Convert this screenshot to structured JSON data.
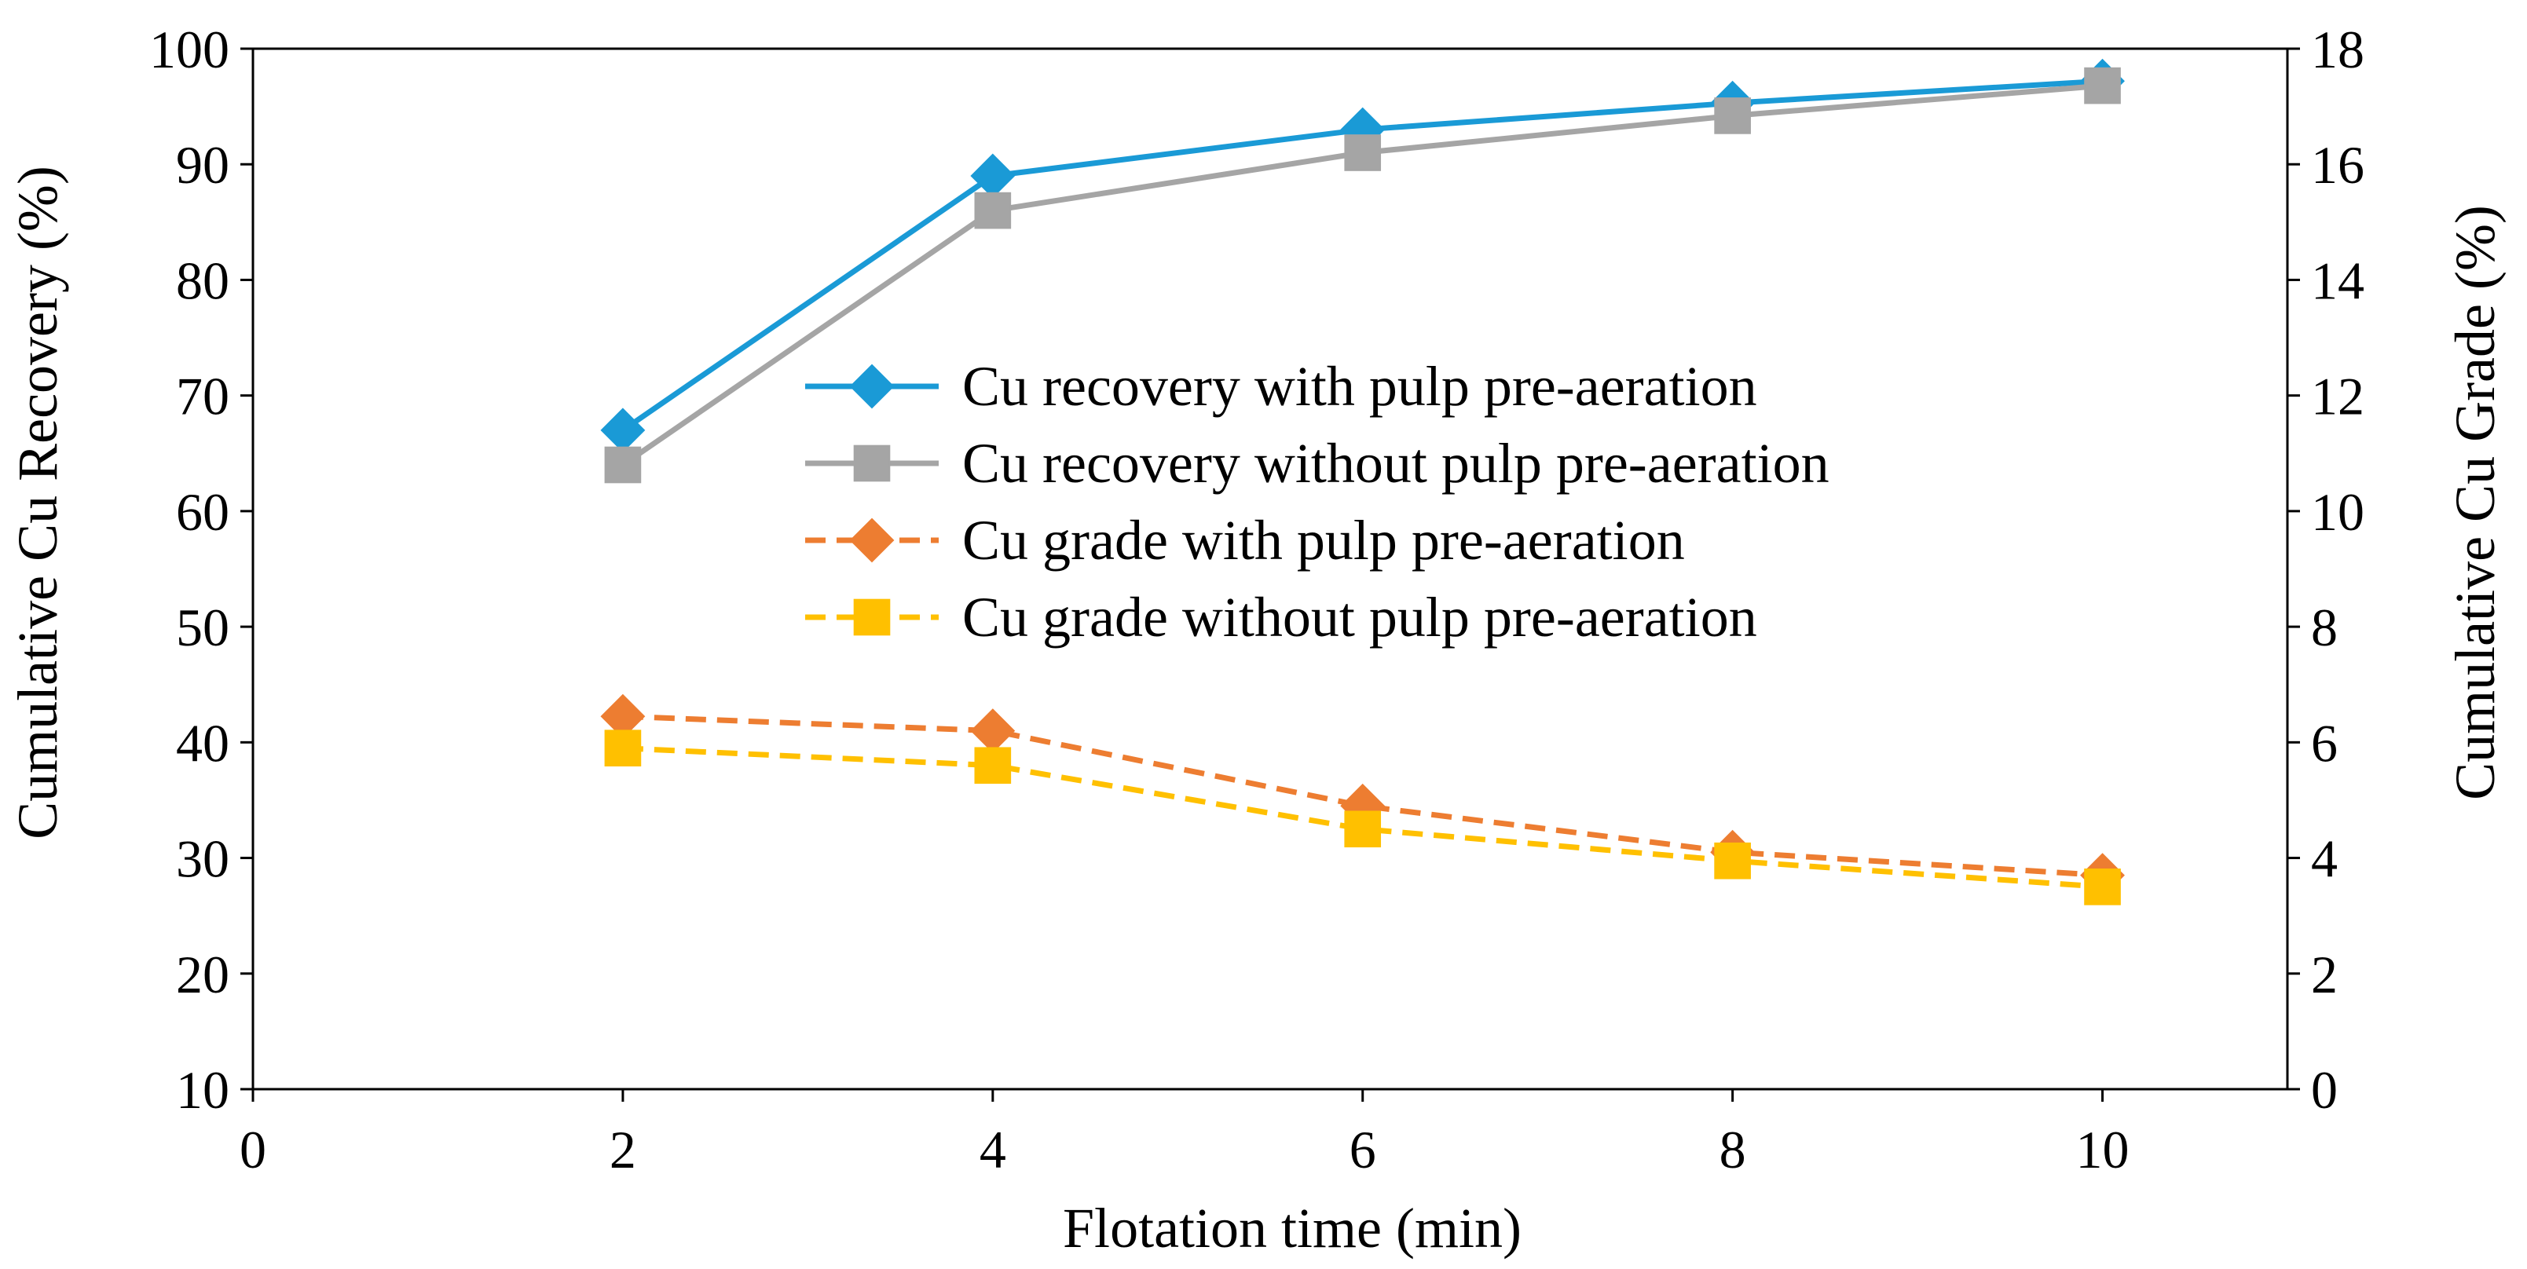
{
  "chart_data": {
    "type": "line",
    "title": "",
    "xlabel": "Flotation time (min)",
    "ylabel": "Cumulative Cu Recovery (%)",
    "y2label": "Cumulative Cu Grade (%)",
    "xlim": [
      0,
      11
    ],
    "ylim": [
      10,
      100
    ],
    "y2lim": [
      0,
      18
    ],
    "xticks": [
      0,
      2,
      4,
      6,
      8,
      10
    ],
    "yticks": [
      10,
      20,
      30,
      40,
      50,
      60,
      70,
      80,
      90,
      100
    ],
    "y2ticks": [
      0,
      2,
      4,
      6,
      8,
      10,
      12,
      14,
      16,
      18
    ],
    "grid": false,
    "legend_position": "center",
    "x": [
      2,
      4,
      6,
      8,
      10
    ],
    "series": [
      {
        "name": "Cu recovery with pulp pre-aeration",
        "axis": "left",
        "values": [
          67,
          89,
          93,
          95.3,
          97.2
        ],
        "color": "#1a9ad6",
        "marker": "diamond",
        "dash": "solid"
      },
      {
        "name": "Cu recovery without pulp pre-aeration",
        "axis": "left",
        "values": [
          64,
          86,
          91,
          94.2,
          96.8
        ],
        "color": "#a5a5a5",
        "marker": "square",
        "dash": "solid"
      },
      {
        "name": "Cu grade with pulp pre-aeration",
        "axis": "right",
        "values": [
          6.45,
          6.2,
          4.9,
          4.1,
          3.7
        ],
        "color": "#ed7d31",
        "marker": "diamond",
        "dash": "dashed"
      },
      {
        "name": "Cu grade without pulp pre-aeration",
        "axis": "right",
        "values": [
          5.9,
          5.6,
          4.5,
          3.95,
          3.5
        ],
        "color": "#ffc000",
        "marker": "square",
        "dash": "dashed"
      }
    ]
  }
}
